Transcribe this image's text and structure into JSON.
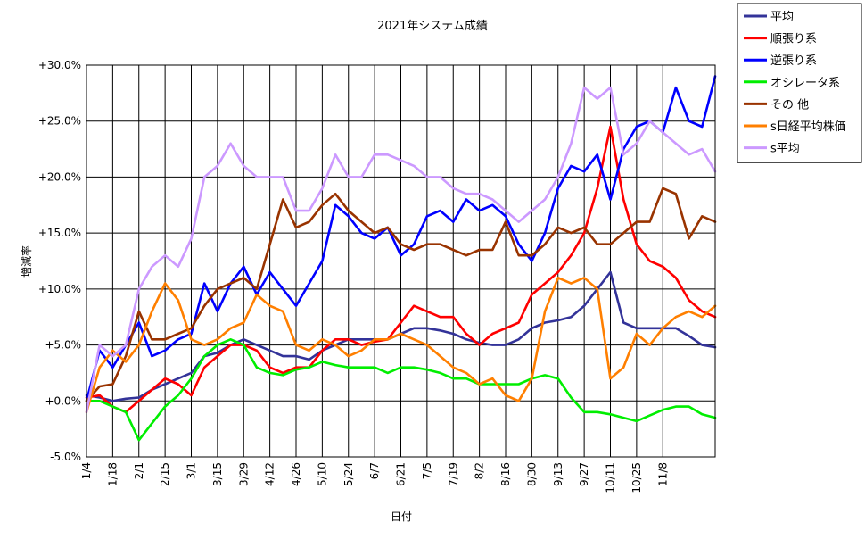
{
  "chart_data": {
    "type": "line",
    "title": "2021年システム成績",
    "xlabel": "日付",
    "ylabel": "増減率",
    "ylim": [
      -5,
      30
    ],
    "yticks": [
      30,
      25,
      20,
      15,
      10,
      5,
      0,
      -5
    ],
    "ytick_labels": [
      "+30.0%",
      "+25.0%",
      "+20.0%",
      "+15.0%",
      "+10.0%",
      "+5.0%",
      "+0.0%",
      "-5.0%"
    ],
    "negative_tick_color": "#ff0000",
    "x_categories": [
      "1/4",
      "1/18",
      "2/1",
      "2/15",
      "3/1",
      "3/15",
      "3/29",
      "4/12",
      "4/26",
      "5/10",
      "5/24",
      "6/7",
      "6/21",
      "7/5",
      "7/19",
      "8/2",
      "8/16",
      "8/30",
      "9/13",
      "9/27",
      "10/11",
      "10/25",
      "11/8"
    ],
    "x_index_range": [
      0,
      24
    ],
    "grid": true,
    "legend_position": "top-right",
    "series": [
      {
        "name": "平均",
        "color": "#333399",
        "x": [
          0,
          0.5,
          1,
          1.5,
          2,
          2.5,
          3,
          3.5,
          4,
          4.5,
          5,
          5.5,
          6,
          6.5,
          7,
          7.5,
          8,
          8.5,
          9,
          9.5,
          10,
          10.5,
          11,
          11.5,
          12,
          12.5,
          13,
          13.5,
          14,
          14.5,
          15,
          15.5,
          16,
          16.5,
          17,
          17.5,
          18,
          18.5,
          19,
          19.5,
          20,
          20.5,
          21,
          21.5,
          22,
          22.5,
          23,
          23.5,
          24
        ],
        "values": [
          0.5,
          0.3,
          0,
          0.2,
          0.3,
          1,
          1.5,
          2,
          2.5,
          4,
          4.3,
          5,
          5.5,
          5,
          4.5,
          4,
          4,
          3.7,
          4.5,
          5,
          5.5,
          5.5,
          5.5,
          5.5,
          6,
          6.5,
          6.5,
          6.3,
          6,
          5.5,
          5.2,
          5,
          5,
          5.5,
          6.5,
          7,
          7.2,
          7.5,
          8.5,
          10,
          11.5,
          7,
          6.5,
          6.5,
          6.5,
          6.5,
          5.8,
          5,
          4.8
        ]
      },
      {
        "name": "順張り系",
        "color": "#ff0000",
        "x": [
          0,
          0.5,
          1,
          1.5,
          2,
          2.5,
          3,
          3.5,
          4,
          4.5,
          5,
          5.5,
          6,
          6.5,
          7,
          7.5,
          8,
          8.5,
          9,
          9.5,
          10,
          10.5,
          11,
          11.5,
          12,
          12.5,
          13,
          13.5,
          14,
          14.5,
          15,
          15.5,
          16,
          16.5,
          17,
          17.5,
          18,
          18.5,
          19,
          19.5,
          20,
          20.5,
          21,
          21.5,
          22,
          22.5,
          23,
          23.5,
          24
        ],
        "values": [
          0.3,
          0.5,
          -0.5,
          -1,
          0,
          1,
          2,
          1.5,
          0.5,
          3,
          4,
          5,
          5,
          4.5,
          3,
          2.5,
          3,
          3,
          4.5,
          5.5,
          5.5,
          5,
          5.3,
          5.5,
          7,
          8.5,
          8,
          7.5,
          7.5,
          6,
          5,
          6,
          6.5,
          7,
          9.5,
          10.5,
          11.5,
          13,
          15,
          19,
          24.5,
          18,
          14,
          12.5,
          12,
          11,
          9,
          8,
          7.5
        ]
      },
      {
        "name": "逆張り系",
        "color": "#0000ff",
        "x": [
          0,
          0.5,
          1,
          1.5,
          2,
          2.5,
          3,
          3.5,
          4,
          4.5,
          5,
          5.5,
          6,
          6.5,
          7,
          7.5,
          8,
          8.5,
          9,
          9.5,
          10,
          10.5,
          11,
          11.5,
          12,
          12.5,
          13,
          13.5,
          14,
          14.5,
          15,
          15.5,
          16,
          16.5,
          17,
          17.5,
          18,
          18.5,
          19,
          19.5,
          20,
          20.5,
          21,
          21.5,
          22,
          22.5,
          23,
          23.5,
          24
        ],
        "values": [
          0,
          4.5,
          3,
          5,
          7,
          4,
          4.5,
          5.5,
          6,
          10.5,
          8,
          10.5,
          12,
          9.5,
          11.5,
          10,
          8.5,
          10.5,
          12.5,
          17.5,
          16.5,
          15,
          14.5,
          15.5,
          13,
          14,
          16.5,
          17,
          16,
          18,
          17,
          17.5,
          16.5,
          14,
          12.5,
          15,
          19,
          21,
          20.5,
          22,
          18,
          22.5,
          24.5,
          25,
          24,
          28,
          25,
          24.5,
          29
        ]
      },
      {
        "name": "オシレータ系",
        "color": "#00ee00",
        "x": [
          0,
          0.5,
          1,
          1.5,
          2,
          2.5,
          3,
          3.5,
          4,
          4.5,
          5,
          5.5,
          6,
          6.5,
          7,
          7.5,
          8,
          8.5,
          9,
          9.5,
          10,
          10.5,
          11,
          11.5,
          12,
          12.5,
          13,
          13.5,
          14,
          14.5,
          15,
          15.5,
          16,
          16.5,
          17,
          17.5,
          18,
          18.5,
          19,
          19.5,
          20,
          20.5,
          21,
          21.5,
          22,
          22.5,
          23,
          23.5,
          24
        ],
        "values": [
          0,
          0,
          -0.5,
          -1,
          -3.5,
          -2,
          -0.5,
          0.5,
          2,
          4,
          5,
          5.5,
          5,
          3,
          2.5,
          2.3,
          2.8,
          3,
          3.5,
          3.2,
          3,
          3,
          3,
          2.5,
          3,
          3,
          2.8,
          2.5,
          2,
          2,
          1.5,
          1.5,
          1.5,
          1.5,
          2,
          2.3,
          2,
          0.3,
          -1,
          -1,
          -1.2,
          -1.5,
          -1.8,
          -1.3,
          -0.8,
          -0.5,
          -0.5,
          -1.2,
          -1.5
        ]
      },
      {
        "name": "その 他",
        "color": "#993300",
        "x": [
          0,
          0.5,
          1,
          1.5,
          2,
          2.5,
          3,
          3.5,
          4,
          4.5,
          5,
          5.5,
          6,
          6.5,
          7,
          7.5,
          8,
          8.5,
          9,
          9.5,
          10,
          10.5,
          11,
          11.5,
          12,
          12.5,
          13,
          13.5,
          14,
          14.5,
          15,
          15.5,
          16,
          16.5,
          17,
          17.5,
          18,
          18.5,
          19,
          19.5,
          20,
          20.5,
          21,
          21.5,
          22,
          22.5,
          23,
          23.5,
          24
        ],
        "values": [
          0,
          1.3,
          1.5,
          4,
          8,
          5.5,
          5.5,
          6,
          6.5,
          8.5,
          10,
          10.5,
          11,
          10,
          14,
          18,
          15.5,
          16,
          17.5,
          18.5,
          17,
          16,
          15,
          15.5,
          14,
          13.5,
          14,
          14,
          13.5,
          13,
          13.5,
          13.5,
          16,
          13,
          13,
          14,
          15.5,
          15,
          15.5,
          14,
          14,
          15,
          16,
          16,
          19,
          18.5,
          14.5,
          16.5,
          16
        ]
      },
      {
        "name": "s日経平均株価",
        "color": "#ff7f00",
        "x": [
          0,
          0.5,
          1,
          1.5,
          2,
          2.5,
          3,
          3.5,
          4,
          4.5,
          5,
          5.5,
          6,
          6.5,
          7,
          7.5,
          8,
          8.5,
          9,
          9.5,
          10,
          10.5,
          11,
          11.5,
          12,
          12.5,
          13,
          13.5,
          14,
          14.5,
          15,
          15.5,
          16,
          16.5,
          17,
          17.5,
          18,
          18.5,
          19,
          19.5,
          20,
          20.5,
          21,
          21.5,
          22,
          22.5,
          23,
          23.5,
          24
        ],
        "values": [
          -1,
          3,
          4.5,
          3.5,
          5,
          8,
          10.5,
          9,
          5.5,
          5,
          5.5,
          6.5,
          7,
          9.5,
          8.5,
          8,
          5,
          4.5,
          5.5,
          5,
          4,
          4.5,
          5.5,
          5.5,
          6,
          5.5,
          5,
          4,
          3,
          2.5,
          1.5,
          2,
          0.5,
          0,
          2,
          8,
          11,
          10.5,
          11,
          10,
          2,
          3,
          6,
          5,
          6.5,
          7.5,
          8,
          7.5,
          8.5
        ]
      },
      {
        "name": "s平均",
        "color": "#cc99ff",
        "x": [
          0,
          0.5,
          1,
          1.5,
          2,
          2.5,
          3,
          3.5,
          4,
          4.5,
          5,
          5.5,
          6,
          6.5,
          7,
          7.5,
          8,
          8.5,
          9,
          9.5,
          10,
          10.5,
          11,
          11.5,
          12,
          12.5,
          13,
          13.5,
          14,
          14.5,
          15,
          15.5,
          16,
          16.5,
          17,
          17.5,
          18,
          18.5,
          19,
          19.5,
          20,
          20.5,
          21,
          21.5,
          22,
          22.5,
          23,
          23.5,
          24
        ],
        "values": [
          -1,
          5,
          4,
          5,
          10,
          12,
          13,
          12,
          14.5,
          20,
          21,
          23,
          21,
          20,
          20,
          20,
          17,
          17,
          19,
          22,
          20,
          20,
          22,
          22,
          21.5,
          21,
          20,
          20,
          19,
          18.5,
          18.5,
          18,
          17,
          16,
          17,
          18,
          20,
          23,
          28,
          27,
          28,
          22,
          23,
          25,
          24,
          23,
          22,
          22.5,
          20.5
        ]
      }
    ]
  }
}
